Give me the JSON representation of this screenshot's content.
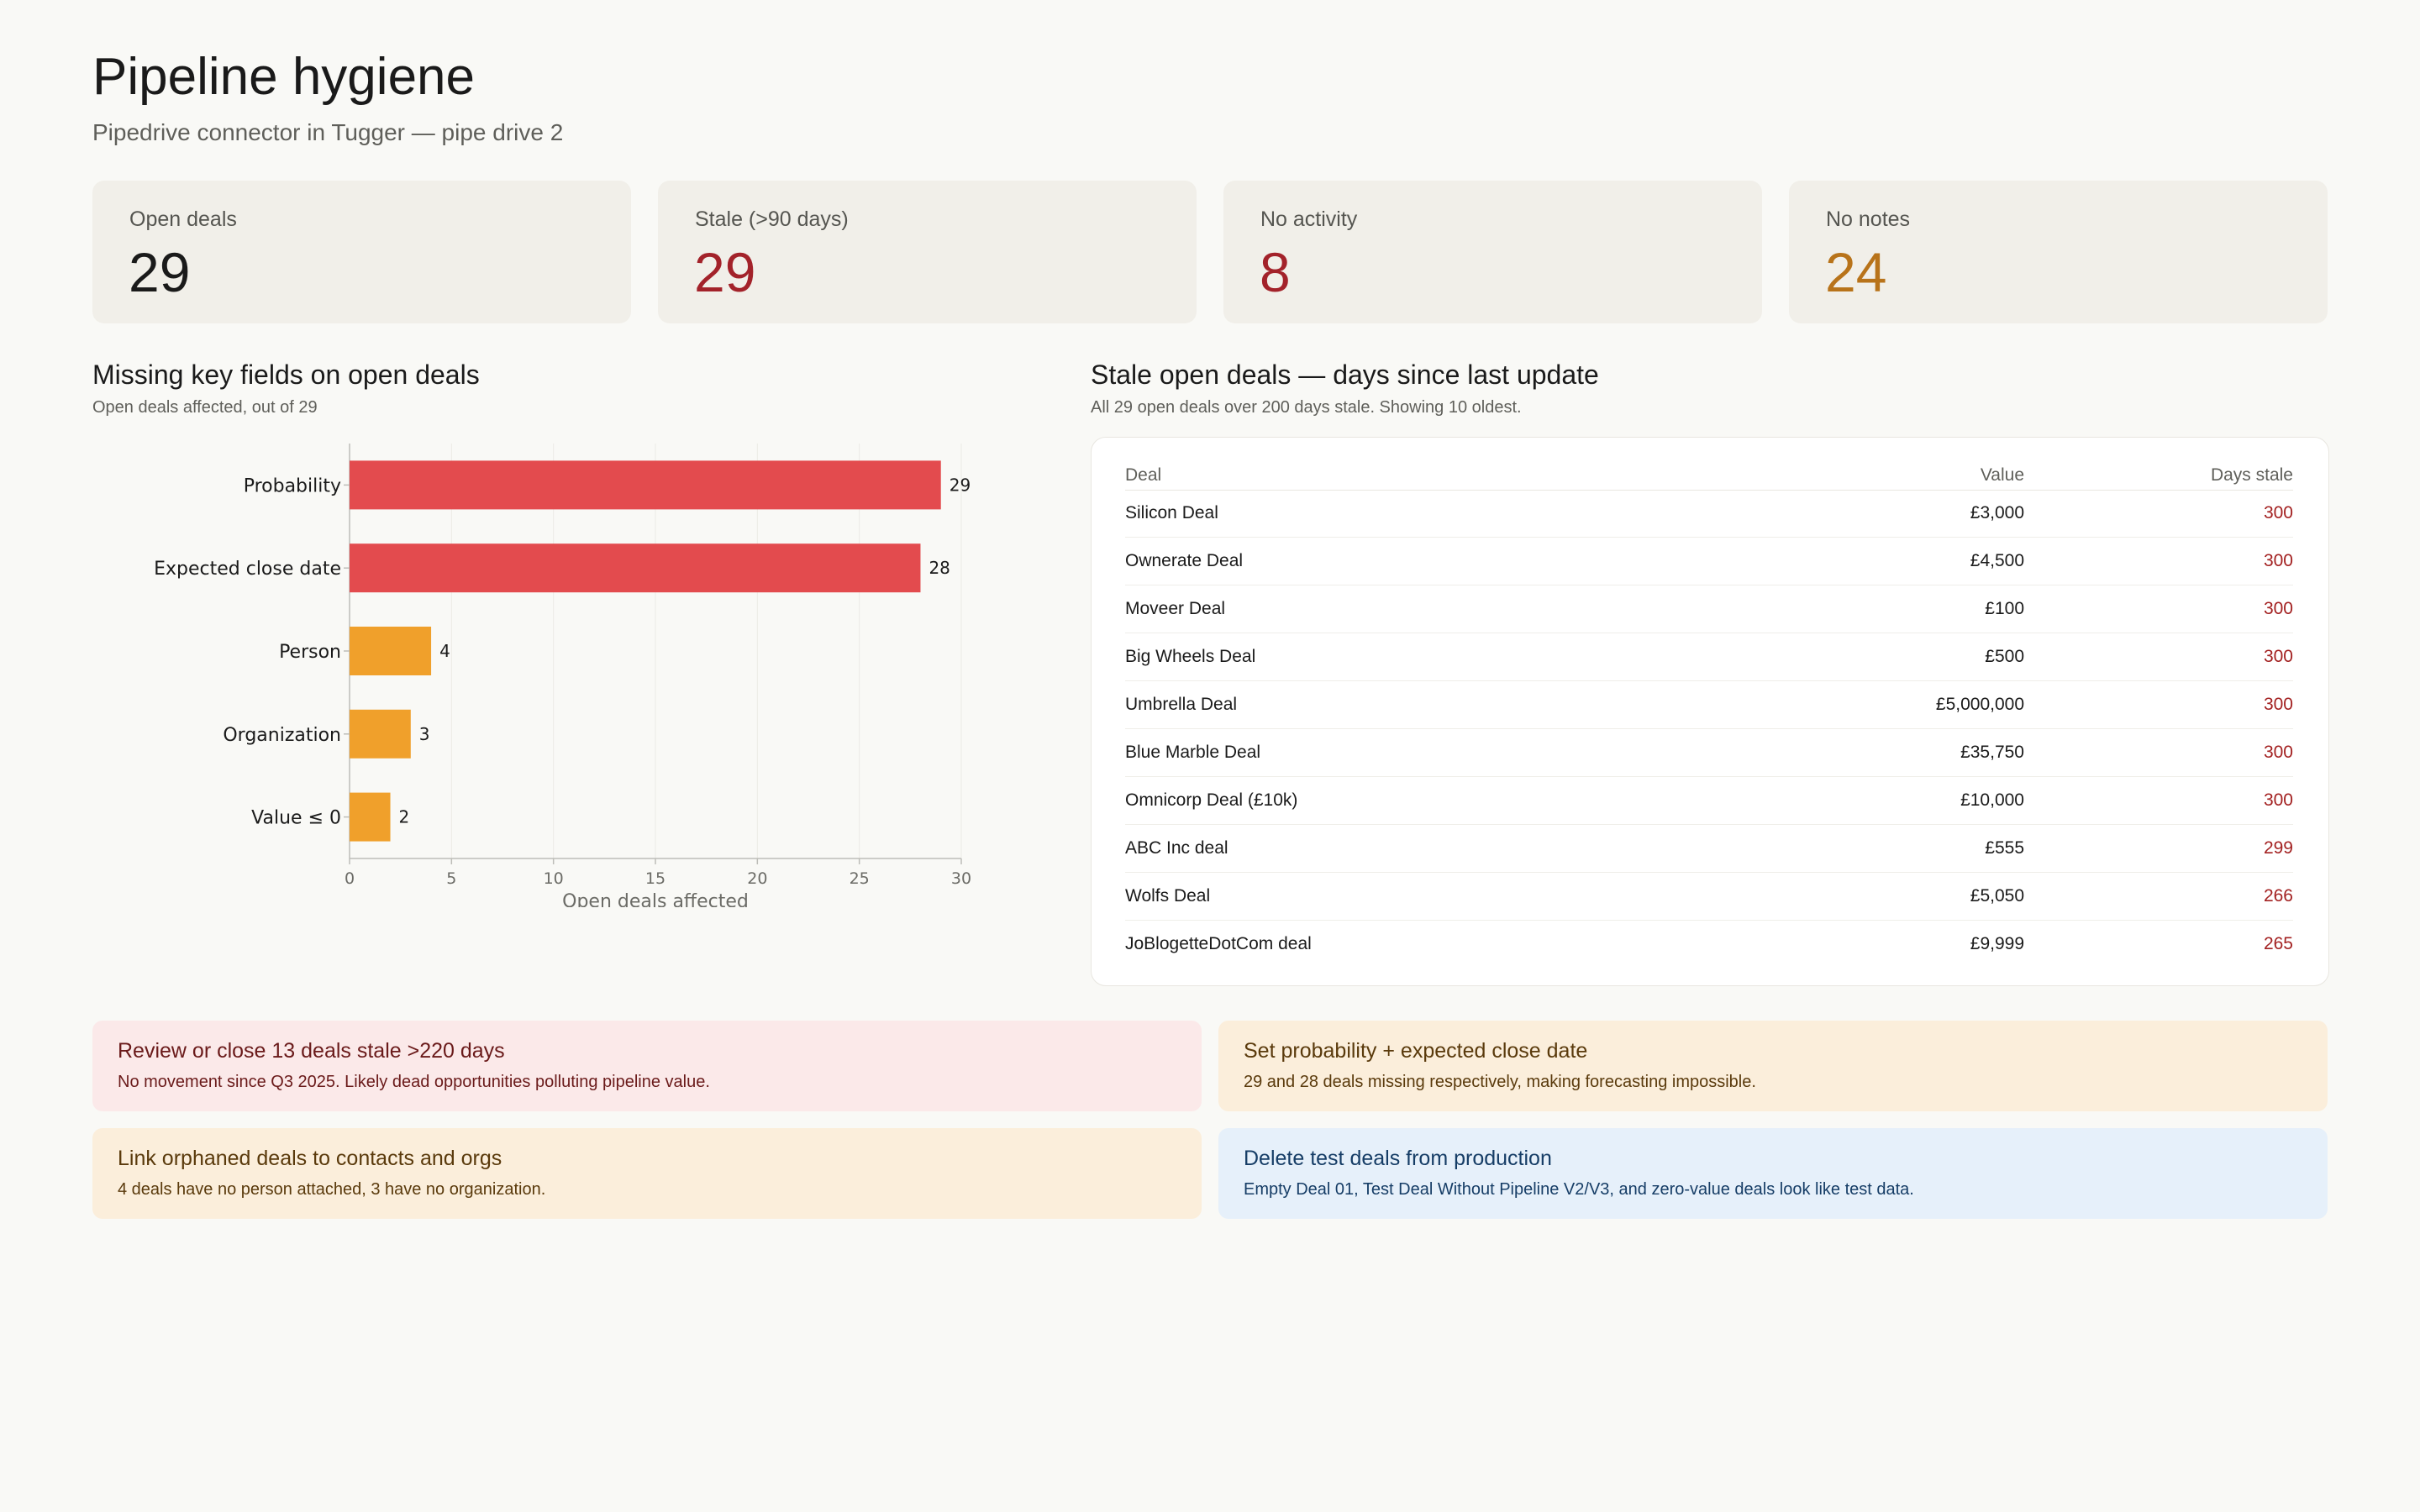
{
  "page": {
    "title": "Pipeline hygiene",
    "subtitle": "Pipedrive connector in Tugger — pipe drive 2"
  },
  "kpis": [
    {
      "label": "Open deals",
      "value": "29",
      "color": "#1a1a1a"
    },
    {
      "label": "Stale (>90 days)",
      "value": "29",
      "color": "#a3222a"
    },
    {
      "label": "No activity",
      "value": "8",
      "color": "#a3222a"
    },
    {
      "label": "No notes",
      "value": "24",
      "color": "#b8731a"
    }
  ],
  "missing_fields": {
    "title": "Missing key fields on open deals",
    "subtitle": "Open deals affected, out of 29"
  },
  "chart_data": {
    "type": "bar",
    "orientation": "horizontal",
    "categories": [
      "Probability",
      "Expected close date",
      "Person",
      "Organization",
      "Value ≤ 0"
    ],
    "values": [
      29,
      28,
      4,
      3,
      2
    ],
    "bar_colors": [
      "#e34b4e",
      "#e34b4e",
      "#f0a02b",
      "#f0a02b",
      "#f0a02b"
    ],
    "xlabel": "Open deals affected",
    "ylabel": "",
    "xlim": [
      0,
      30
    ],
    "xticks": [
      0,
      5,
      10,
      15,
      20,
      25,
      30
    ],
    "grid": true,
    "data_labels": true
  },
  "stale": {
    "title": "Stale open deals — days since last update",
    "subtitle": "All 29 open deals over 200 days stale. Showing 10 oldest.",
    "columns": {
      "deal": "Deal",
      "value": "Value",
      "days": "Days stale"
    },
    "rows": [
      {
        "deal": "Silicon Deal",
        "value": "£3,000",
        "days": "300"
      },
      {
        "deal": "Ownerate Deal",
        "value": "£4,500",
        "days": "300"
      },
      {
        "deal": "Moveer Deal",
        "value": "£100",
        "days": "300"
      },
      {
        "deal": "Big Wheels Deal",
        "value": "£500",
        "days": "300"
      },
      {
        "deal": "Umbrella Deal",
        "value": "£5,000,000",
        "days": "300"
      },
      {
        "deal": "Blue Marble Deal",
        "value": "£35,750",
        "days": "300"
      },
      {
        "deal": "Omnicorp Deal (£10k)",
        "value": "£10,000",
        "days": "300"
      },
      {
        "deal": "ABC Inc deal",
        "value": "£555",
        "days": "299"
      },
      {
        "deal": "Wolfs Deal",
        "value": "£5,050",
        "days": "266"
      },
      {
        "deal": "JoBlogetteDotCom deal",
        "value": "£9,999",
        "days": "265"
      }
    ]
  },
  "recommendations": [
    {
      "tone": "red",
      "title": "Review or close 13 deals stale >220 days",
      "body": "No movement since Q3 2025. Likely dead opportunities polluting pipeline value."
    },
    {
      "tone": "amber",
      "title": "Set probability + expected close date",
      "body": "29 and 28 deals missing respectively, making forecasting impossible."
    },
    {
      "tone": "amber",
      "title": "Link orphaned deals to contacts and orgs",
      "body": "4 deals have no person attached, 3 have no organization."
    },
    {
      "tone": "blue",
      "title": "Delete test deals from production",
      "body": "Empty Deal 01, Test Deal Without Pipeline V2/V3, and zero-value deals look like test data."
    }
  ]
}
